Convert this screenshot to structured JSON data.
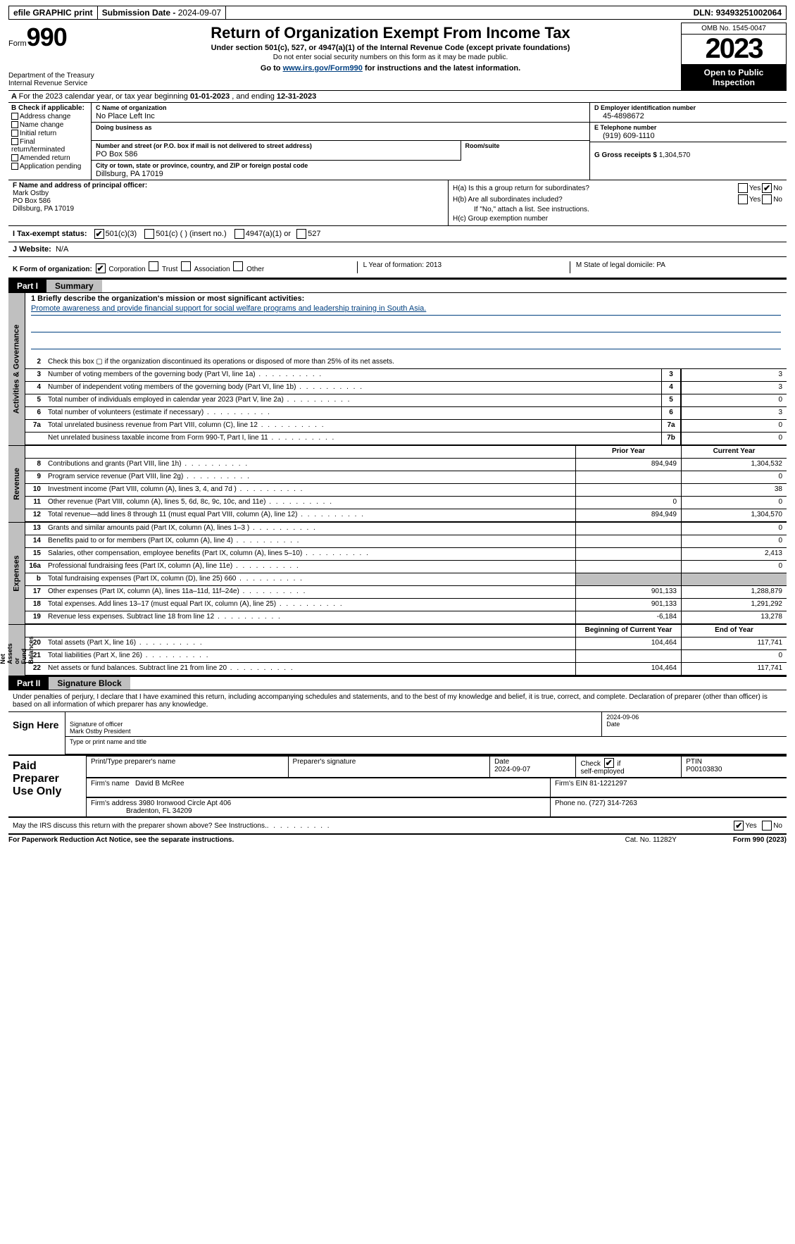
{
  "topbar": {
    "efile": "efile GRAPHIC print",
    "submission_label": "Submission Date - ",
    "submission_date": "2024-09-07",
    "dln_label": "DLN: ",
    "dln": "93493251002064"
  },
  "header": {
    "form_label": "Form",
    "form_number": "990",
    "dept": "Department of the Treasury\nInternal Revenue Service",
    "title": "Return of Organization Exempt From Income Tax",
    "subtitle": "Under section 501(c), 527, or 4947(a)(1) of the Internal Revenue Code (except private foundations)",
    "note": "Do not enter social security numbers on this form as it may be made public.",
    "goto_prefix": "Go to ",
    "goto_link": "www.irs.gov/Form990",
    "goto_suffix": " for instructions and the latest information.",
    "omb": "OMB No. 1545-0047",
    "year": "2023",
    "inspection": "Open to Public Inspection"
  },
  "line_a": {
    "text": "For the 2023 calendar year, or tax year beginning ",
    "begin": "01-01-2023",
    "mid": "   , and ending ",
    "end": "12-31-2023"
  },
  "box_b": {
    "label": "B Check if applicable:",
    "items": [
      "Address change",
      "Name change",
      "Initial return",
      "Final return/terminated",
      "Amended return",
      "Application pending"
    ]
  },
  "box_c": {
    "name_label": "C Name of organization",
    "name": "No Place Left Inc",
    "dba_label": "Doing business as",
    "dba": "",
    "street_label": "Number and street (or P.O. box if mail is not delivered to street address)",
    "street": "PO Box 586",
    "room_label": "Room/suite",
    "city_label": "City or town, state or province, country, and ZIP or foreign postal code",
    "city": "Dillsburg, PA  17019"
  },
  "box_d": {
    "ein_label": "D Employer identification number",
    "ein": "45-4898672",
    "phone_label": "E Telephone number",
    "phone": "(919) 609-1110",
    "gross_label": "G Gross receipts $ ",
    "gross": "1,304,570"
  },
  "box_f": {
    "label": "F  Name and address of principal officer:",
    "name": "Mark Ostby",
    "addr1": "PO Box 586",
    "addr2": "Dillsburg, PA  17019"
  },
  "box_h": {
    "ha": "H(a)  Is this a group return for subordinates?",
    "hb": "H(b)  Are all subordinates included?",
    "hb_note": "If \"No,\" attach a list. See instructions.",
    "hc": "H(c)  Group exemption number  "
  },
  "box_i": {
    "label": "I  Tax-exempt status:",
    "c3": "501(c)(3)",
    "c": "501(c) (   ) (insert no.)",
    "a1": "4947(a)(1) or",
    "s527": "527"
  },
  "box_j": {
    "label": "J  Website: ",
    "value": "N/A"
  },
  "box_k": {
    "label": "K Form of organization:",
    "corp": "Corporation",
    "trust": "Trust",
    "assoc": "Association",
    "other": "Other"
  },
  "box_l": {
    "text": "L Year of formation: 2013"
  },
  "box_m": {
    "text": "M State of legal domicile: PA"
  },
  "part1": {
    "num": "Part I",
    "title": "Summary"
  },
  "mission": {
    "prompt": "1  Briefly describe the organization's mission or most significant activities:",
    "text": "Promote awareness and provide financial support for social welfare programs and leadership training in South Asia."
  },
  "line2": "Check this box  ▢  if the organization discontinued its operations or disposed of more than 25% of its net assets.",
  "governance": [
    {
      "n": "3",
      "d": "Number of voting members of the governing body (Part VI, line 1a)",
      "b": "3",
      "v": "3"
    },
    {
      "n": "4",
      "d": "Number of independent voting members of the governing body (Part VI, line 1b)",
      "b": "4",
      "v": "3"
    },
    {
      "n": "5",
      "d": "Total number of individuals employed in calendar year 2023 (Part V, line 2a)",
      "b": "5",
      "v": "0"
    },
    {
      "n": "6",
      "d": "Total number of volunteers (estimate if necessary)",
      "b": "6",
      "v": "3"
    },
    {
      "n": "7a",
      "d": "Total unrelated business revenue from Part VIII, column (C), line 12",
      "b": "7a",
      "v": "0"
    },
    {
      "n": "",
      "d": "Net unrelated business taxable income from Form 990-T, Part I, line 11",
      "b": "7b",
      "v": "0"
    }
  ],
  "col_hdr_prior": "Prior Year",
  "col_hdr_current": "Current Year",
  "revenue": [
    {
      "n": "8",
      "d": "Contributions and grants (Part VIII, line 1h)",
      "p": "894,949",
      "c": "1,304,532"
    },
    {
      "n": "9",
      "d": "Program service revenue (Part VIII, line 2g)",
      "p": "",
      "c": "0"
    },
    {
      "n": "10",
      "d": "Investment income (Part VIII, column (A), lines 3, 4, and 7d )",
      "p": "",
      "c": "38"
    },
    {
      "n": "11",
      "d": "Other revenue (Part VIII, column (A), lines 5, 6d, 8c, 9c, 10c, and 11e)",
      "p": "0",
      "c": "0"
    },
    {
      "n": "12",
      "d": "Total revenue—add lines 8 through 11 (must equal Part VIII, column (A), line 12)",
      "p": "894,949",
      "c": "1,304,570"
    }
  ],
  "expenses": [
    {
      "n": "13",
      "d": "Grants and similar amounts paid (Part IX, column (A), lines 1–3 )",
      "p": "",
      "c": "0"
    },
    {
      "n": "14",
      "d": "Benefits paid to or for members (Part IX, column (A), line 4)",
      "p": "",
      "c": "0"
    },
    {
      "n": "15",
      "d": "Salaries, other compensation, employee benefits (Part IX, column (A), lines 5–10)",
      "p": "",
      "c": "2,413"
    },
    {
      "n": "16a",
      "d": "Professional fundraising fees (Part IX, column (A), line 11e)",
      "p": "",
      "c": "0"
    },
    {
      "n": "b",
      "d": "Total fundraising expenses (Part IX, column (D), line 25) 660",
      "p": "GREY",
      "c": "GREY"
    },
    {
      "n": "17",
      "d": "Other expenses (Part IX, column (A), lines 11a–11d, 11f–24e)",
      "p": "901,133",
      "c": "1,288,879"
    },
    {
      "n": "18",
      "d": "Total expenses. Add lines 13–17 (must equal Part IX, column (A), line 25)",
      "p": "901,133",
      "c": "1,291,292"
    },
    {
      "n": "19",
      "d": "Revenue less expenses. Subtract line 18 from line 12",
      "p": "-6,184",
      "c": "13,278"
    }
  ],
  "col_hdr_begin": "Beginning of Current Year",
  "col_hdr_end": "End of Year",
  "netassets": [
    {
      "n": "20",
      "d": "Total assets (Part X, line 16)",
      "p": "104,464",
      "c": "117,741"
    },
    {
      "n": "21",
      "d": "Total liabilities (Part X, line 26)",
      "p": "",
      "c": "0"
    },
    {
      "n": "22",
      "d": "Net assets or fund balances. Subtract line 21 from line 20",
      "p": "104,464",
      "c": "117,741"
    }
  ],
  "vtabs": {
    "gov": "Activities & Governance",
    "rev": "Revenue",
    "exp": "Expenses",
    "net": "Net Assets or\nFund Balances"
  },
  "part2": {
    "num": "Part II",
    "title": "Signature Block"
  },
  "perjury": "Under penalties of perjury, I declare that I have examined this return, including accompanying schedules and statements, and to the best of my knowledge and belief, it is true, correct, and complete. Declaration of preparer (other than officer) is based on all information of which preparer has any knowledge.",
  "sign": {
    "here": "Sign Here",
    "sig_label": "Signature of officer",
    "officer": "Mark Ostby President",
    "name_label": "Type or print name and title",
    "date_label": "Date",
    "date": "2024-09-06"
  },
  "prep": {
    "label": "Paid Preparer Use Only",
    "name_hdr": "Print/Type preparer's name",
    "sig_hdr": "Preparer's signature",
    "date_hdr": "Date",
    "date": "2024-09-07",
    "self_hdr": "Check ▢ if self-employed",
    "self_checked": true,
    "ptin_hdr": "PTIN",
    "ptin": "P00103830",
    "firm_name_hdr": "Firm's name  ",
    "firm_name": "David B McRee",
    "firm_ein_hdr": "Firm's EIN  ",
    "firm_ein": "81-1221297",
    "firm_addr_hdr": "Firm's address ",
    "firm_addr1": "3980 Ironwood Circle Apt 406",
    "firm_addr2": "Bradenton, FL  34209",
    "phone_hdr": "Phone no. ",
    "phone": "(727) 314-7263"
  },
  "discuss": {
    "q": "May the IRS discuss this return with the preparer shown above? See Instructions.",
    "yes_checked": true
  },
  "footer": {
    "pra": "For Paperwork Reduction Act Notice, see the separate instructions.",
    "cat": "Cat. No. 11282Y",
    "form": "Form 990 (2023)"
  },
  "colors": {
    "link": "#004080",
    "grey": "#c0c0c0",
    "black": "#000000"
  }
}
